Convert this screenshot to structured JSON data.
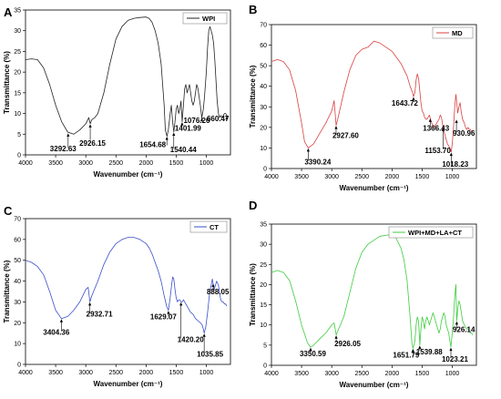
{
  "chart_data": [
    {
      "panel": "A",
      "type": "line",
      "legend": "WPI",
      "color": "#222222",
      "xlabel": "Wavenumber (cm⁻¹)",
      "ylabel": "Transmittance (%)",
      "xlim": [
        4000,
        600
      ],
      "ylim": [
        0,
        35
      ],
      "xticks": [
        4000,
        3500,
        3000,
        2500,
        2000,
        1500,
        1000
      ],
      "yticks": [
        0,
        5,
        10,
        15,
        20,
        25,
        30,
        35
      ],
      "x": [
        4000,
        3900,
        3800,
        3700,
        3600,
        3500,
        3400,
        3300,
        3200,
        3100,
        3000,
        2950,
        2926,
        2900,
        2850,
        2800,
        2700,
        2600,
        2500,
        2400,
        2300,
        2200,
        2100,
        2000,
        1950,
        1900,
        1850,
        1800,
        1750,
        1700,
        1680,
        1654,
        1630,
        1600,
        1580,
        1560,
        1540,
        1520,
        1500,
        1480,
        1460,
        1440,
        1420,
        1401,
        1380,
        1360,
        1340,
        1320,
        1300,
        1280,
        1260,
        1240,
        1220,
        1200,
        1180,
        1160,
        1140,
        1120,
        1100,
        1076,
        1050,
        1030,
        1000,
        980,
        960,
        940,
        920,
        900,
        880,
        860,
        840,
        820,
        800,
        780,
        760,
        740,
        720,
        700,
        680,
        660
      ],
      "y": [
        23,
        23.2,
        23,
        21,
        17,
        12,
        8,
        5.5,
        5,
        6,
        7.5,
        9,
        7.5,
        8.5,
        9,
        10,
        15,
        22,
        28,
        31,
        32.5,
        33,
        33.2,
        33.3,
        33,
        32,
        30,
        27,
        22,
        12,
        6,
        4.5,
        6,
        10,
        12,
        8,
        5.5,
        8,
        11,
        12,
        10,
        11,
        13,
        8,
        12,
        16,
        17,
        15,
        16,
        17,
        15,
        13,
        12,
        13,
        15,
        17,
        16,
        14,
        12,
        9,
        11,
        14,
        20,
        26,
        30,
        31,
        30,
        29,
        27,
        23,
        18,
        13,
        10,
        9,
        9.5,
        9,
        9.5,
        10,
        10,
        9.5
      ],
      "annotations": [
        {
          "label": "3292.63",
          "x": 3292.63,
          "y": 5.3
        },
        {
          "label": "2926.15",
          "x": 2926.15,
          "y": 7.5
        },
        {
          "label": "1654.68",
          "x": 1654.68,
          "y": 4.5
        },
        {
          "label": "1540.44",
          "x": 1540.44,
          "y": 5.5
        },
        {
          "label": "1401.99",
          "x": 1401.99,
          "y": 8
        },
        {
          "label": "1076.26",
          "x": 1076.26,
          "y": 9
        },
        {
          "label": "660.47",
          "x": 660.47,
          "y": 9.5
        }
      ]
    },
    {
      "panel": "B",
      "type": "line",
      "legend": "MD",
      "color": "#d94040",
      "xlabel": "Wavenumber (cm⁻¹)",
      "ylabel": "Transmittance (%)",
      "xlim": [
        4000,
        600
      ],
      "ylim": [
        0,
        70
      ],
      "xticks": [
        4000,
        3500,
        3000,
        2500,
        2000,
        1500,
        1000
      ],
      "yticks": [
        0,
        10,
        20,
        30,
        40,
        50,
        60,
        70
      ],
      "x": [
        4000,
        3900,
        3800,
        3700,
        3600,
        3500,
        3450,
        3390,
        3300,
        3200,
        3100,
        3000,
        2960,
        2927,
        2900,
        2800,
        2700,
        2600,
        2500,
        2400,
        2300,
        2200,
        2100,
        2000,
        1950,
        1900,
        1850,
        1800,
        1750,
        1700,
        1660,
        1643,
        1620,
        1600,
        1580,
        1560,
        1540,
        1520,
        1500,
        1480,
        1460,
        1440,
        1420,
        1400,
        1380,
        1366,
        1340,
        1300,
        1260,
        1220,
        1200,
        1180,
        1153,
        1120,
        1100,
        1080,
        1060,
        1040,
        1018,
        1000,
        980,
        960,
        940,
        930,
        910,
        890,
        870,
        850,
        830,
        800,
        780,
        760,
        740,
        720,
        700,
        680,
        660
      ],
      "y": [
        52,
        53,
        52,
        48,
        38,
        22,
        13,
        10,
        12,
        17,
        22,
        28,
        33,
        21,
        24,
        37,
        48,
        55,
        58,
        59,
        62,
        61,
        59,
        57,
        55,
        53,
        51,
        48,
        45,
        40,
        37,
        35,
        37,
        43,
        46,
        44,
        38,
        32,
        28,
        27,
        25,
        24,
        24,
        25,
        26,
        24.5,
        22,
        20,
        22,
        24,
        26,
        25,
        20,
        16,
        14,
        12,
        11,
        10,
        8,
        12,
        20,
        30,
        36,
        33,
        27,
        30,
        32,
        27,
        24,
        22,
        20,
        19,
        20,
        19,
        19,
        18,
        18
      ],
      "annotations": [
        {
          "label": "3390.24",
          "x": 3390.24,
          "y": 10
        },
        {
          "label": "2927.60",
          "x": 2927.6,
          "y": 21
        },
        {
          "label": "1643.72",
          "x": 1643.72,
          "y": 35
        },
        {
          "label": "1366.43",
          "x": 1366.43,
          "y": 24.5
        },
        {
          "label": "1153.70",
          "x": 1153.7,
          "y": 20
        },
        {
          "label": "1018.23",
          "x": 1018.23,
          "y": 8
        },
        {
          "label": "930.96",
          "x": 930.96,
          "y": 24
        }
      ]
    },
    {
      "panel": "C",
      "type": "line",
      "legend": "CT",
      "color": "#3a4fc8",
      "xlabel": "Wavenumber (cm⁻¹)",
      "ylabel": "Transmittance (%)",
      "xlim": [
        4000,
        600
      ],
      "ylim": [
        0,
        70
      ],
      "xticks": [
        4000,
        3500,
        3000,
        2500,
        2000,
        1500,
        1000
      ],
      "yticks": [
        0,
        10,
        20,
        30,
        40,
        50,
        60,
        70
      ],
      "x": [
        4000,
        3900,
        3800,
        3700,
        3600,
        3500,
        3404,
        3300,
        3200,
        3100,
        3000,
        2960,
        2932,
        2900,
        2800,
        2700,
        2600,
        2500,
        2400,
        2300,
        2200,
        2100,
        2000,
        1950,
        1900,
        1850,
        1800,
        1750,
        1700,
        1660,
        1629,
        1600,
        1580,
        1560,
        1540,
        1520,
        1500,
        1480,
        1460,
        1440,
        1420,
        1400,
        1380,
        1360,
        1340,
        1300,
        1260,
        1220,
        1180,
        1140,
        1100,
        1070,
        1050,
        1035,
        1010,
        980,
        950,
        920,
        900,
        888,
        870,
        850,
        830,
        800,
        780,
        760,
        740,
        720,
        700,
        680,
        660
      ],
      "y": [
        50,
        49,
        47,
        43,
        35,
        26,
        22,
        23,
        26,
        30,
        36,
        37,
        30,
        33,
        40,
        48,
        54,
        58,
        60,
        61,
        61,
        60,
        58,
        56,
        53,
        49,
        45,
        40,
        33,
        28,
        26,
        32,
        37,
        42,
        41,
        36,
        32,
        30,
        31,
        31,
        30,
        30,
        31,
        30,
        29,
        27,
        25,
        24,
        22,
        21,
        20,
        19,
        17,
        15,
        18,
        25,
        33,
        38,
        41,
        39,
        36,
        38,
        40,
        38,
        34,
        31,
        30,
        30,
        29,
        29,
        28
      ],
      "annotations": [
        {
          "label": "3404.36",
          "x": 3404.36,
          "y": 22
        },
        {
          "label": "2932.71",
          "x": 2932.71,
          "y": 30
        },
        {
          "label": "1629.07",
          "x": 1629.07,
          "y": 26
        },
        {
          "label": "1420.20",
          "x": 1420.2,
          "y": 30
        },
        {
          "label": "1035.85",
          "x": 1035.85,
          "y": 15
        },
        {
          "label": "888.05",
          "x": 888.05,
          "y": 39
        }
      ]
    },
    {
      "panel": "D",
      "type": "line",
      "legend": "WPI+MD+LA+CT",
      "color": "#3dcc3d",
      "xlabel": "Wavenumber (cm⁻¹)",
      "ylabel": "Transmittance (%)",
      "xlim": [
        4000,
        600
      ],
      "ylim": [
        0,
        35
      ],
      "xticks": [
        4000,
        3500,
        3000,
        2500,
        2000,
        1500,
        1000
      ],
      "yticks": [
        0,
        5,
        10,
        15,
        20,
        25,
        30,
        35
      ],
      "x": [
        4000,
        3900,
        3800,
        3700,
        3600,
        3500,
        3400,
        3350,
        3300,
        3200,
        3100,
        3000,
        2960,
        2926,
        2900,
        2800,
        2700,
        2600,
        2500,
        2400,
        2300,
        2200,
        2100,
        2000,
        1950,
        1900,
        1850,
        1800,
        1750,
        1700,
        1670,
        1651,
        1620,
        1600,
        1580,
        1560,
        1539,
        1520,
        1500,
        1480,
        1460,
        1440,
        1420,
        1400,
        1380,
        1360,
        1340,
        1320,
        1300,
        1280,
        1260,
        1240,
        1220,
        1200,
        1180,
        1160,
        1140,
        1120,
        1100,
        1080,
        1060,
        1040,
        1023,
        1000,
        980,
        960,
        940,
        926,
        910,
        890,
        870,
        850,
        830,
        800,
        780,
        760,
        740,
        720,
        700,
        680,
        660
      ],
      "y": [
        23,
        23.5,
        23,
        21,
        16,
        10,
        5.5,
        4.5,
        5,
        6.5,
        8,
        10,
        10.5,
        7.5,
        8.5,
        12,
        18,
        24,
        28,
        30,
        31,
        32,
        32.2,
        32.5,
        32,
        30.5,
        29,
        26,
        21,
        12,
        5.5,
        4.2,
        6,
        10,
        12,
        11,
        5,
        9,
        12,
        11,
        9,
        11,
        12,
        11,
        10,
        11,
        12,
        13,
        12,
        11,
        10,
        9,
        8,
        9,
        11,
        12,
        13,
        12,
        10,
        9,
        8,
        6,
        4.5,
        8,
        12,
        17,
        20,
        11,
        14,
        16,
        15,
        13,
        11,
        10,
        9.5,
        9,
        9,
        8.5,
        8,
        8,
        7.5
      ],
      "annotations": [
        {
          "label": "3350.59",
          "x": 3350.59,
          "y": 4.5
        },
        {
          "label": "2926.05",
          "x": 2926.05,
          "y": 7.5
        },
        {
          "label": "1651.79",
          "x": 1651.79,
          "y": 4.2
        },
        {
          "label": "1539.88",
          "x": 1539.88,
          "y": 5
        },
        {
          "label": "1023.21",
          "x": 1023.21,
          "y": 4.5
        },
        {
          "label": "926.14",
          "x": 926.14,
          "y": 11
        }
      ]
    }
  ]
}
